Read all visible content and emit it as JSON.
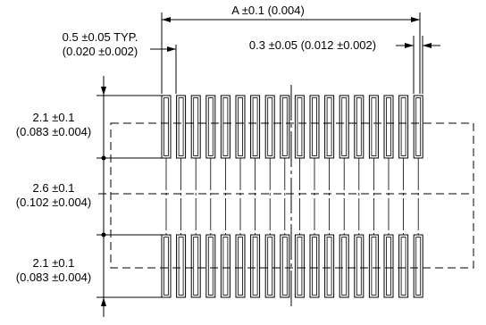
{
  "dimensions": {
    "overall_width": "A ±0.1 (0.004)",
    "pitch": {
      "mm": "0.5 ±0.05 TYP.",
      "inch": "(0.020 ±0.002)"
    },
    "pad_width": "0.3 ±0.05 (0.012 ±0.002)",
    "top_pad_length": {
      "mm": "2.1 ±0.1",
      "inch": "(0.083 ±0.004)"
    },
    "gap": {
      "mm": "2.6 ±0.1",
      "inch": "(0.102 ±0.004)"
    },
    "bottom_pad_length": {
      "mm": "2.1 ±0.1",
      "inch": "(0.083 ±0.004)"
    }
  }
}
